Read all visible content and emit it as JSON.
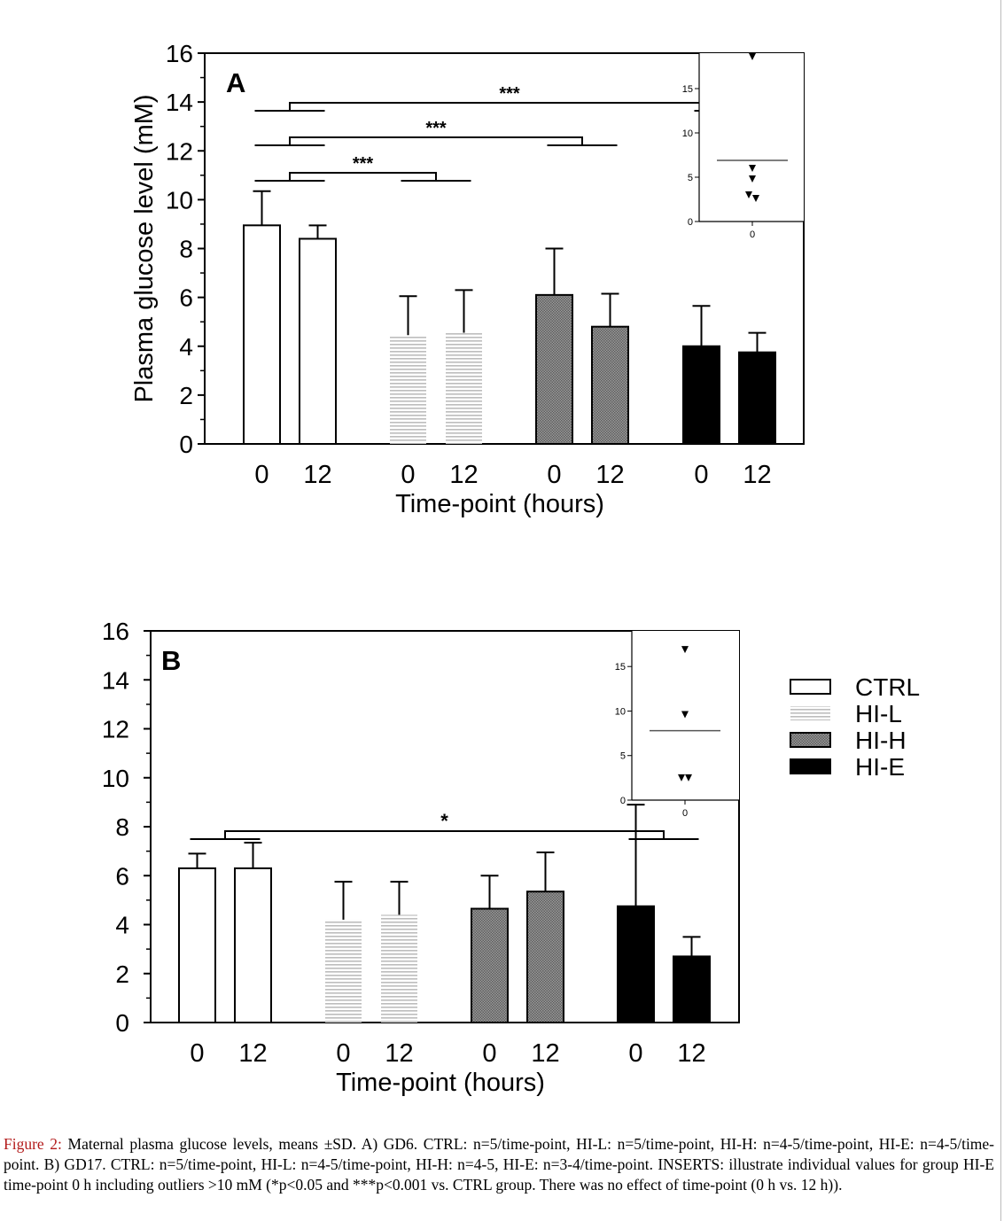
{
  "figure": {
    "caption_label": "Figure 2:",
    "caption_text": "Maternal plasma glucose levels, means ±SD. A) GD6. CTRL: n=5/time-point, HI-L: n=5/time-point, HI-H: n=4-5/time-point, HI-E: n=4-5/time-point. B) GD17. CTRL: n=5/time-point, HI-L: n=4-5/time-point, HI-H: n=4-5, HI-E: n=3-4/time-point. INSERTS: illustrate individual values for group HI-E time-point 0 h including outliers >10 mM (*p<0.05 and ***p<0.001 vs. CTRL group. There was no effect of time-point (0 h vs. 12 h))."
  },
  "legend": {
    "entries": [
      {
        "label": "CTRL",
        "fill": "open"
      },
      {
        "label": "HI-L",
        "fill": "lines"
      },
      {
        "label": "HI-H",
        "fill": "grid"
      },
      {
        "label": "HI-E",
        "fill": "solid"
      }
    ]
  },
  "chart_data": [
    {
      "type": "bar",
      "panel": "A",
      "ylabel": "Plasma glucose level (mM)",
      "xlabel": "Time-point (hours)",
      "ylim": [
        0,
        16
      ],
      "yticks": [
        "0",
        "2",
        "4",
        "6",
        "8",
        "10",
        "12",
        "14",
        "16"
      ],
      "categories": [
        "0",
        "12"
      ],
      "series": [
        {
          "name": "CTRL",
          "values": [
            8.95,
            8.4
          ],
          "errors": [
            1.4,
            0.55
          ]
        },
        {
          "name": "HI-L",
          "values": [
            4.45,
            4.55
          ],
          "errors": [
            1.6,
            1.75
          ]
        },
        {
          "name": "HI-H",
          "values": [
            6.1,
            4.8
          ],
          "errors": [
            1.9,
            1.35
          ]
        },
        {
          "name": "HI-E",
          "values": [
            4.0,
            3.75
          ],
          "errors": [
            1.65,
            0.8
          ]
        }
      ],
      "significance": [
        {
          "label": "***",
          "from": "CTRL",
          "to": "HI-L"
        },
        {
          "label": "***",
          "from": "CTRL",
          "to": "HI-H"
        },
        {
          "label": "***",
          "from": "CTRL",
          "to": "HI-E"
        }
      ],
      "insert": {
        "type": "scatter",
        "ylim": [
          0,
          19
        ],
        "yticks": [
          "0",
          "5",
          "10",
          "15"
        ],
        "xtick": "0",
        "points": [
          18.6,
          6.0,
          4.8,
          3.0,
          2.6
        ],
        "mean": 6.9
      }
    },
    {
      "type": "bar",
      "panel": "B",
      "xlabel": "Time-point (hours)",
      "ylim": [
        0,
        16
      ],
      "yticks": [
        "0",
        "2",
        "4",
        "6",
        "8",
        "10",
        "12",
        "14",
        "16"
      ],
      "categories": [
        "0",
        "12"
      ],
      "series": [
        {
          "name": "CTRL",
          "values": [
            6.3,
            6.3
          ],
          "errors": [
            0.6,
            1.05
          ]
        },
        {
          "name": "HI-L",
          "values": [
            4.2,
            4.4
          ],
          "errors": [
            1.55,
            1.35
          ]
        },
        {
          "name": "HI-H",
          "values": [
            4.65,
            5.35
          ],
          "errors": [
            1.35,
            1.6
          ]
        },
        {
          "name": "HI-E",
          "values": [
            4.75,
            2.7
          ],
          "errors": [
            4.15,
            0.8
          ]
        }
      ],
      "significance": [
        {
          "label": "*",
          "from": "CTRL",
          "to": "HI-E"
        }
      ],
      "insert": {
        "type": "scatter",
        "ylim": [
          0,
          19
        ],
        "yticks": [
          "0",
          "5",
          "10",
          "15"
        ],
        "xtick": "0",
        "points": [
          16.9,
          9.6,
          2.5,
          2.5
        ],
        "mean": 7.8
      }
    }
  ]
}
